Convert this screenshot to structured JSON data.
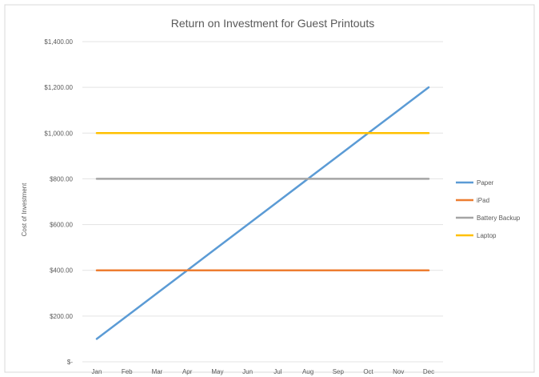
{
  "chart_data": {
    "type": "line",
    "title": "Return on Investment for Guest Printouts",
    "xlabel": "",
    "ylabel": "Cost of Investment",
    "categories": [
      "Jan",
      "Feb",
      "Mar",
      "Apr",
      "May",
      "Jun",
      "Jul",
      "Aug",
      "Sep",
      "Oct",
      "Nov",
      "Dec"
    ],
    "ylim": [
      0,
      1400
    ],
    "yticks": [
      {
        "value": 0,
        "label": "$-"
      },
      {
        "value": 200,
        "label": "$200.00"
      },
      {
        "value": 400,
        "label": "$400.00"
      },
      {
        "value": 600,
        "label": "$600.00"
      },
      {
        "value": 800,
        "label": "$800.00"
      },
      {
        "value": 1000,
        "label": "$1,000.00"
      },
      {
        "value": 1200,
        "label": "$1,200.00"
      },
      {
        "value": 1400,
        "label": "$1,400.00"
      }
    ],
    "grid": true,
    "legend_position": "right",
    "series": [
      {
        "name": "Paper",
        "color": "#5B9BD5",
        "values": [
          100,
          200,
          300,
          400,
          500,
          600,
          700,
          800,
          900,
          1000,
          1100,
          1200
        ]
      },
      {
        "name": "iPad",
        "color": "#ED7D31",
        "values": [
          400,
          400,
          400,
          400,
          400,
          400,
          400,
          400,
          400,
          400,
          400,
          400
        ]
      },
      {
        "name": "Battery Backup",
        "color": "#A5A5A5",
        "values": [
          800,
          800,
          800,
          800,
          800,
          800,
          800,
          800,
          800,
          800,
          800,
          800
        ]
      },
      {
        "name": "Laptop",
        "color": "#FFC000",
        "values": [
          1000,
          1000,
          1000,
          1000,
          1000,
          1000,
          1000,
          1000,
          1000,
          1000,
          1000,
          1000
        ]
      }
    ]
  }
}
